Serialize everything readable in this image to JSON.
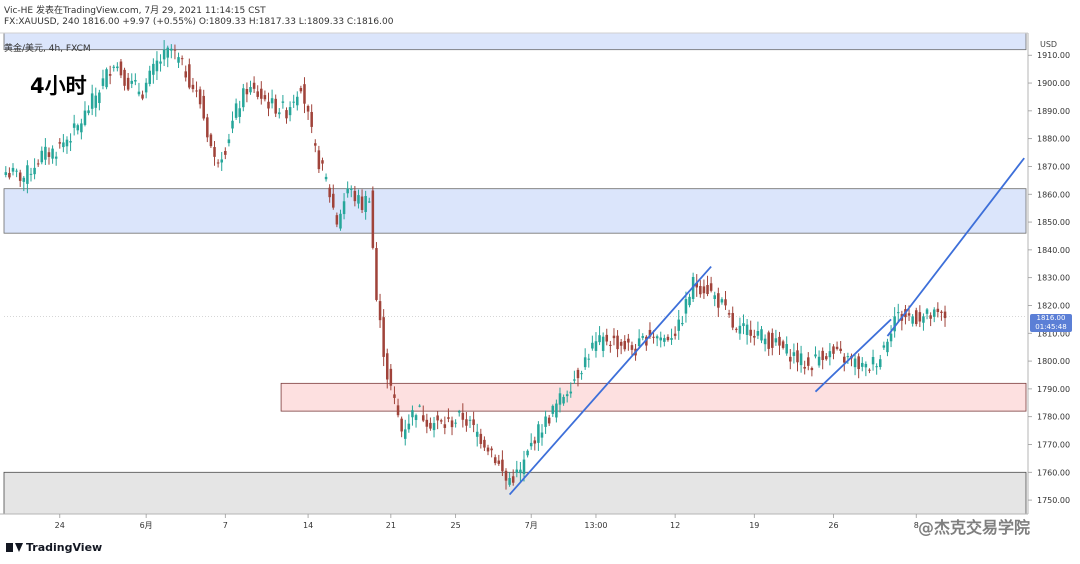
{
  "header": {
    "line1_author": "Vic-HE",
    "line1_published": "发表在TradingView.com, 7月 29, 2021 11:14:15 CST",
    "line2_symbol": "FX:XAUUSD, 240",
    "line2_close": "1816.00",
    "line2_change": "+9.97 (+0.55%)",
    "line2_ohlc": "O:1809.33 H:1817.33 L:1809.33 C:1816.00",
    "line3": "黄金/美元, 4h, FXCM"
  },
  "timeframe_label": "4小时",
  "footer_brand": "TradingView",
  "watermark_credit": "@杰克交易学院",
  "axis_unit": "USD",
  "price_tag": {
    "price": "1816.00",
    "countdown": "01:45:48"
  },
  "colors": {
    "up": "#26a69a",
    "down": "#a0433a",
    "trendline": "#3d6fd9",
    "zone_blue": "#dbe5fb",
    "zone_red": "#fde0e0",
    "zone_gray": "#e5e5e5",
    "price_tag": "#5b7fd6"
  },
  "chart_data": {
    "type": "candlestick",
    "symbol": "XAUUSD",
    "timeframe": "4h",
    "ylim": [
      1745,
      1918
    ],
    "y_ticks": [
      1750,
      1760,
      1770,
      1780,
      1790,
      1800,
      1810,
      1820,
      1830,
      1840,
      1850,
      1860,
      1870,
      1880,
      1890,
      1900,
      1910
    ],
    "x_ticks": [
      "24",
      "6月",
      "7",
      "14",
      "21",
      "25",
      "7月",
      "13:00",
      "12",
      "19",
      "26",
      "8"
    ],
    "x_tick_index": [
      15,
      39,
      61,
      84,
      107,
      125,
      146,
      164,
      186,
      208,
      230,
      253
    ],
    "n_bars": 262,
    "anchors": [
      [
        0,
        1868
      ],
      [
        5,
        1866
      ],
      [
        10,
        1874
      ],
      [
        14,
        1876
      ],
      [
        20,
        1884
      ],
      [
        26,
        1898
      ],
      [
        30,
        1908
      ],
      [
        34,
        1900
      ],
      [
        38,
        1897
      ],
      [
        42,
        1907
      ],
      [
        46,
        1912
      ],
      [
        50,
        1904
      ],
      [
        54,
        1893
      ],
      [
        58,
        1872
      ],
      [
        61,
        1877
      ],
      [
        64,
        1890
      ],
      [
        67,
        1898
      ],
      [
        70,
        1896
      ],
      [
        74,
        1892
      ],
      [
        78,
        1890
      ],
      [
        82,
        1900
      ],
      [
        86,
        1875
      ],
      [
        89,
        1865
      ],
      [
        92,
        1850
      ],
      [
        95,
        1862
      ],
      [
        99,
        1856
      ],
      [
        101,
        1860
      ],
      [
        103,
        1822
      ],
      [
        106,
        1795
      ],
      [
        110,
        1775
      ],
      [
        114,
        1783
      ],
      [
        118,
        1778
      ],
      [
        122,
        1777
      ],
      [
        127,
        1780
      ],
      [
        131,
        1774
      ],
      [
        135,
        1768
      ],
      [
        139,
        1757
      ],
      [
        143,
        1760
      ],
      [
        147,
        1773
      ],
      [
        151,
        1780
      ],
      [
        155,
        1788
      ],
      [
        159,
        1796
      ],
      [
        163,
        1805
      ],
      [
        167,
        1808
      ],
      [
        171,
        1806
      ],
      [
        175,
        1804
      ],
      [
        179,
        1810
      ],
      [
        183,
        1808
      ],
      [
        187,
        1812
      ],
      [
        191,
        1828
      ],
      [
        195,
        1826
      ],
      [
        199,
        1820
      ],
      [
        203,
        1810
      ],
      [
        207,
        1812
      ],
      [
        211,
        1808
      ],
      [
        215,
        1805
      ],
      [
        219,
        1802
      ],
      [
        223,
        1798
      ],
      [
        227,
        1803
      ],
      [
        231,
        1802
      ],
      [
        235,
        1800
      ],
      [
        239,
        1797
      ],
      [
        243,
        1802
      ],
      [
        247,
        1816
      ]
    ],
    "zones": [
      {
        "name": "upper-resistance-zone",
        "from": 1912,
        "to": 1918,
        "color": "blue"
      },
      {
        "name": "middle-resistance-zone",
        "from": 1846,
        "to": 1862,
        "color": "blue"
      },
      {
        "name": "support-zone",
        "from": 1782,
        "to": 1792,
        "color": "red",
        "start_bar": 77
      },
      {
        "name": "lower-support-zone",
        "from": 1745,
        "to": 1760,
        "color": "gray"
      }
    ],
    "trendlines": [
      {
        "name": "rising-trendline-1",
        "from": [
          140,
          1752
        ],
        "to": [
          196,
          1834
        ]
      },
      {
        "name": "rising-trendline-2",
        "from": [
          225,
          1789
        ],
        "to": [
          246,
          1815
        ]
      },
      {
        "name": "projected-trendline",
        "from": [
          245,
          1809
        ],
        "to": [
          283,
          1873
        ]
      }
    ],
    "last_price": 1816.0
  }
}
